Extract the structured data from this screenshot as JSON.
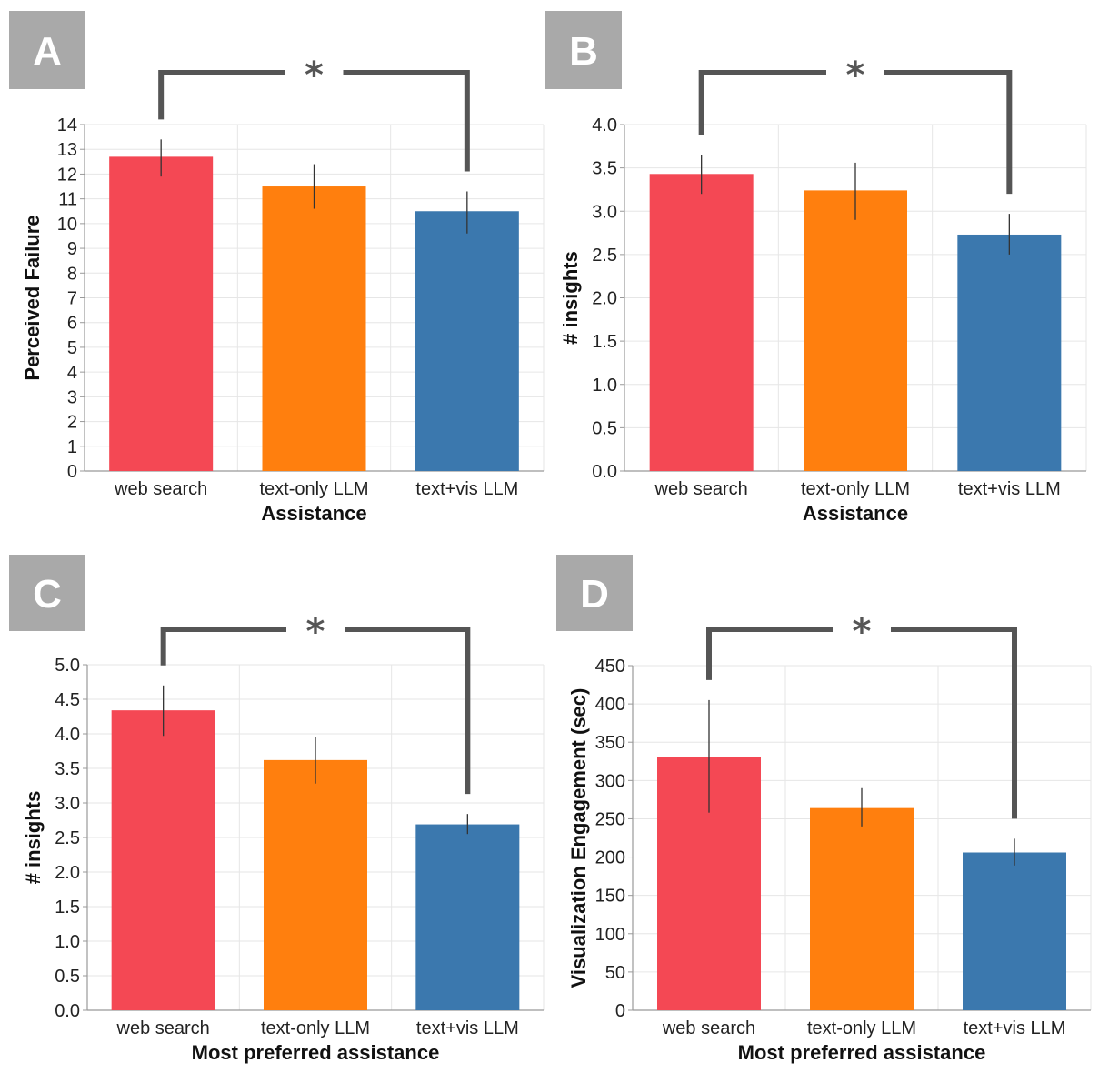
{
  "colors": {
    "web search": "#f44854",
    "text-only LLM": "#ff7f0e",
    "text+vis LLM": "#3b78ae",
    "badge": "#a9a9a9",
    "bracket": "#555555",
    "grid": "#e6e6e6",
    "error_bar": "#333333"
  },
  "chart_data": [
    {
      "panel": "A",
      "type": "bar",
      "categories": [
        "web search",
        "text-only LLM",
        "text+vis LLM"
      ],
      "values": [
        12.7,
        11.5,
        10.5
      ],
      "error_low": [
        11.9,
        10.6,
        9.6
      ],
      "error_high": [
        13.4,
        12.4,
        11.3
      ],
      "ylim": [
        0,
        14
      ],
      "yticks": [
        0,
        1,
        2,
        3,
        4,
        5,
        6,
        7,
        8,
        9,
        10,
        11,
        12,
        13,
        14
      ],
      "ytick_labels": [
        "0",
        "1",
        "2",
        "3",
        "4",
        "5",
        "6",
        "7",
        "8",
        "9",
        "10",
        "11",
        "12",
        "13",
        "14"
      ],
      "xlabel": "Assistance",
      "ylabel": "Perceived Failure",
      "significance": "*",
      "grid": true
    },
    {
      "panel": "B",
      "type": "bar",
      "categories": [
        "web search",
        "text-only LLM",
        "text+vis LLM"
      ],
      "values": [
        3.43,
        3.24,
        2.73
      ],
      "error_low": [
        3.2,
        2.9,
        2.5
      ],
      "error_high": [
        3.65,
        3.56,
        2.97
      ],
      "ylim": [
        0,
        4.0
      ],
      "yticks": [
        0,
        0.5,
        1.0,
        1.5,
        2.0,
        2.5,
        3.0,
        3.5,
        4.0
      ],
      "ytick_labels": [
        "0.0",
        "0.5",
        "1.0",
        "1.5",
        "2.0",
        "2.5",
        "3.0",
        "3.5",
        "4.0"
      ],
      "xlabel": "Assistance",
      "ylabel": "# insights",
      "significance": "*",
      "grid": true
    },
    {
      "panel": "C",
      "type": "bar",
      "categories": [
        "web search",
        "text-only LLM",
        "text+vis LLM"
      ],
      "values": [
        4.34,
        3.62,
        2.69
      ],
      "error_low": [
        3.97,
        3.28,
        2.55
      ],
      "error_high": [
        4.7,
        3.96,
        2.84
      ],
      "ylim": [
        0,
        5.0
      ],
      "yticks": [
        0,
        0.5,
        1.0,
        1.5,
        2.0,
        2.5,
        3.0,
        3.5,
        4.0,
        4.5,
        5.0
      ],
      "ytick_labels": [
        "0.0",
        "0.5",
        "1.0",
        "1.5",
        "2.0",
        "2.5",
        "3.0",
        "3.5",
        "4.0",
        "4.5",
        "5.0"
      ],
      "xlabel": "Most preferred assistance",
      "ylabel": "# insights",
      "significance": "*",
      "grid": true
    },
    {
      "panel": "D",
      "type": "bar",
      "categories": [
        "web search",
        "text-only LLM",
        "text+vis LLM"
      ],
      "values": [
        331,
        264,
        206
      ],
      "error_low": [
        258,
        240,
        189
      ],
      "error_high": [
        405,
        290,
        224
      ],
      "ylim": [
        0,
        450
      ],
      "yticks": [
        0,
        50,
        100,
        150,
        200,
        250,
        300,
        350,
        400,
        450
      ],
      "ytick_labels": [
        "0",
        "50",
        "100",
        "150",
        "200",
        "250",
        "300",
        "350",
        "400",
        "450"
      ],
      "xlabel": "Most preferred assistance",
      "ylabel": "Visualization Engagement (sec)",
      "significance": "*",
      "grid": true
    }
  ]
}
